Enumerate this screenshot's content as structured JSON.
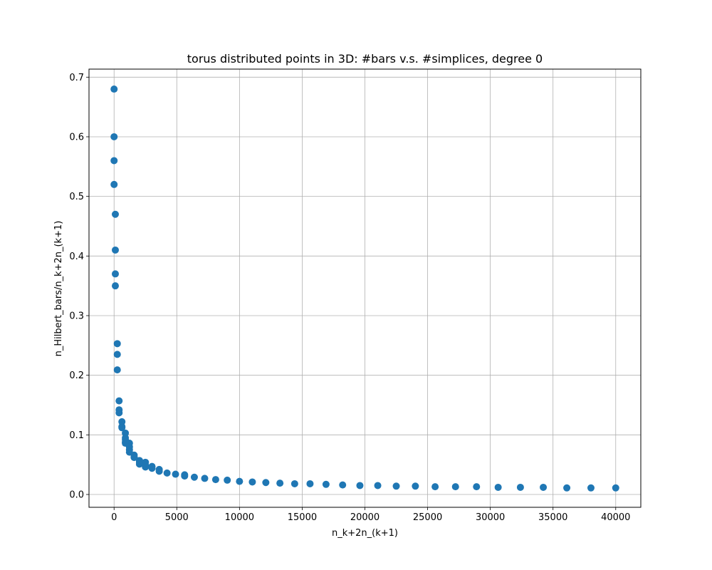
{
  "chart_data": {
    "type": "scatter",
    "title": "torus distributed points in 3D: #bars v.s. #simplices, degree 0",
    "xlabel": "n_k+2n_(k+1)",
    "ylabel": "n_Hilbert_bars/n_k+2n_(k+1)",
    "xlim": [
      -2000,
      42000
    ],
    "ylim": [
      -0.0215,
      0.7135
    ],
    "xticks": [
      0,
      5000,
      10000,
      15000,
      20000,
      25000,
      30000,
      35000,
      40000
    ],
    "xtick_labels": [
      "0",
      "5000",
      "10000",
      "15000",
      "20000",
      "25000",
      "30000",
      "35000",
      "40000"
    ],
    "yticks": [
      0.0,
      0.1,
      0.2,
      0.3,
      0.4,
      0.5,
      0.6,
      0.7
    ],
    "ytick_labels": [
      "0.0",
      "0.1",
      "0.2",
      "0.3",
      "0.4",
      "0.5",
      "0.6",
      "0.7"
    ],
    "grid": true,
    "marker_color": "#1f77b4",
    "series": [
      {
        "x": [
          0,
          0,
          0,
          0,
          100,
          100,
          100,
          100,
          256,
          256,
          256,
          400,
          400,
          400,
          625,
          625,
          625,
          900,
          900,
          900,
          900,
          900,
          1225,
          1225,
          1225,
          1225,
          1600,
          1600,
          1600,
          2025,
          2025,
          2025,
          2500,
          2500,
          2500,
          3025,
          3025,
          3600,
          3600,
          4225,
          4900,
          5625,
          5625,
          6400,
          7225,
          8100,
          9025,
          10000,
          11025,
          12100,
          13225,
          14400,
          15625,
          16900,
          18225,
          19600,
          21025,
          22500,
          24025,
          25600,
          27225,
          28900,
          30625,
          32400,
          34225,
          36100,
          38025,
          40000
        ],
        "y": [
          0.68,
          0.6,
          0.56,
          0.52,
          0.47,
          0.41,
          0.37,
          0.35,
          0.253,
          0.235,
          0.209,
          0.157,
          0.142,
          0.137,
          0.122,
          0.114,
          0.112,
          0.103,
          0.095,
          0.092,
          0.088,
          0.086,
          0.086,
          0.08,
          0.075,
          0.071,
          0.066,
          0.063,
          0.062,
          0.057,
          0.054,
          0.051,
          0.054,
          0.049,
          0.046,
          0.047,
          0.044,
          0.042,
          0.039,
          0.036,
          0.034,
          0.033,
          0.031,
          0.029,
          0.027,
          0.025,
          0.024,
          0.022,
          0.021,
          0.02,
          0.019,
          0.018,
          0.018,
          0.017,
          0.016,
          0.015,
          0.015,
          0.014,
          0.014,
          0.013,
          0.013,
          0.013,
          0.012,
          0.012,
          0.012,
          0.011,
          0.011,
          0.011
        ]
      }
    ]
  }
}
